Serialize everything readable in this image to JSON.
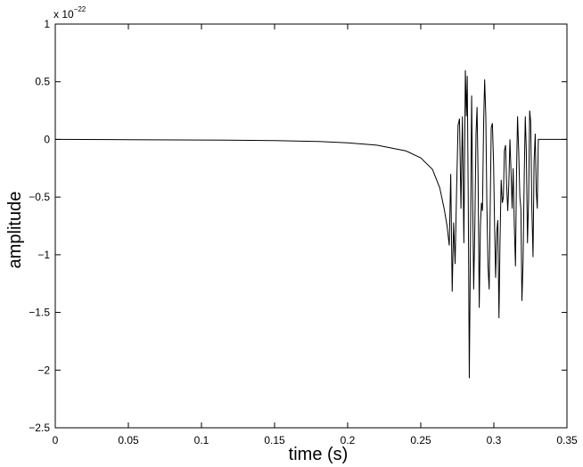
{
  "chart_data": {
    "type": "line",
    "title": "",
    "xlabel": "time (s)",
    "ylabel": "amplitude",
    "exponent_label": "x 10",
    "exponent_power": "−22",
    "xlim": [
      0,
      0.35
    ],
    "ylim": [
      -2.5,
      1
    ],
    "grid": false,
    "x_ticks": [
      0,
      0.05,
      0.1,
      0.15,
      0.2,
      0.25,
      0.3,
      0.35
    ],
    "x_tick_labels": [
      "0",
      "0.05",
      "0.1",
      "0.15",
      "0.2",
      "0.25",
      "0.3",
      "0.35"
    ],
    "y_ticks": [
      1,
      0.5,
      0,
      -0.5,
      -1,
      -1.5,
      -2,
      -2.5
    ],
    "y_tick_labels": [
      "1",
      "0.5",
      "0",
      "−0.5",
      "−1",
      "−1.5",
      "−2",
      "−2.5"
    ],
    "series": [
      {
        "color": "#000000",
        "points": [
          [
            0,
            0.0
          ],
          [
            0.05,
            -0.002
          ],
          [
            0.1,
            -0.005
          ],
          [
            0.15,
            -0.01
          ],
          [
            0.18,
            -0.018
          ],
          [
            0.2,
            -0.03
          ],
          [
            0.22,
            -0.05
          ],
          [
            0.24,
            -0.1
          ],
          [
            0.25,
            -0.16
          ],
          [
            0.258,
            -0.26
          ],
          [
            0.263,
            -0.42
          ],
          [
            0.266,
            -0.6
          ],
          [
            0.268,
            -0.75
          ],
          [
            0.2695,
            -0.92
          ],
          [
            0.2705,
            -0.3
          ],
          [
            0.2715,
            -1.32
          ],
          [
            0.2725,
            -0.72
          ],
          [
            0.2735,
            -1.08
          ],
          [
            0.2745,
            -0.45
          ],
          [
            0.2755,
            0.12
          ],
          [
            0.2765,
            0.18
          ],
          [
            0.2775,
            -0.6
          ],
          [
            0.2785,
            0.2
          ],
          [
            0.2795,
            -0.9
          ],
          [
            0.2805,
            0.6
          ],
          [
            0.2812,
            0.2
          ],
          [
            0.2818,
            0.55
          ],
          [
            0.2825,
            -0.55
          ],
          [
            0.2832,
            -2.07
          ],
          [
            0.284,
            -0.9
          ],
          [
            0.2848,
            0.38
          ],
          [
            0.2855,
            -0.5
          ],
          [
            0.2862,
            -1.3
          ],
          [
            0.287,
            -0.75
          ],
          [
            0.2878,
            0.05
          ],
          [
            0.2885,
            0.28
          ],
          [
            0.2892,
            -0.3
          ],
          [
            0.29,
            -1.46
          ],
          [
            0.2908,
            -0.75
          ],
          [
            0.2915,
            -0.55
          ],
          [
            0.2922,
            -0.62
          ],
          [
            0.293,
            0.14
          ],
          [
            0.2937,
            0.52
          ],
          [
            0.2945,
            0.2
          ],
          [
            0.2952,
            -0.55
          ],
          [
            0.296,
            -1.1
          ],
          [
            0.2968,
            -1.3
          ],
          [
            0.2975,
            -0.6
          ],
          [
            0.2982,
            0.1
          ],
          [
            0.299,
            0.14
          ],
          [
            0.2998,
            -0.2
          ],
          [
            0.3005,
            -0.75
          ],
          [
            0.3012,
            -1.2
          ],
          [
            0.302,
            -0.8
          ],
          [
            0.3027,
            -0.7
          ],
          [
            0.3035,
            -1.55
          ],
          [
            0.3042,
            -0.9
          ],
          [
            0.305,
            -0.35
          ],
          [
            0.3058,
            -0.55
          ],
          [
            0.3065,
            -0.5
          ],
          [
            0.3072,
            -0.1
          ],
          [
            0.308,
            -0.05
          ],
          [
            0.3087,
            -0.38
          ],
          [
            0.3095,
            -0.62
          ],
          [
            0.3102,
            -0.4
          ],
          [
            0.311,
            0.0
          ],
          [
            0.3118,
            -0.3
          ],
          [
            0.3125,
            -0.6
          ],
          [
            0.3132,
            -0.25
          ],
          [
            0.314,
            -0.75
          ],
          [
            0.3148,
            -1.1
          ],
          [
            0.3155,
            -0.3
          ],
          [
            0.3162,
            0.2
          ],
          [
            0.317,
            -0.1
          ],
          [
            0.3178,
            -0.5
          ],
          [
            0.3185,
            -0.6
          ],
          [
            0.3192,
            -1.4
          ],
          [
            0.32,
            -1.05
          ],
          [
            0.3208,
            -0.3
          ],
          [
            0.3215,
            0.2
          ],
          [
            0.3222,
            -0.1
          ],
          [
            0.323,
            -0.9
          ],
          [
            0.3238,
            -0.5
          ],
          [
            0.3245,
            0.25
          ],
          [
            0.3252,
            0.15
          ],
          [
            0.326,
            -0.6
          ],
          [
            0.3268,
            -1.02
          ],
          [
            0.3275,
            -0.2
          ],
          [
            0.3283,
            0.05
          ],
          [
            0.329,
            -0.45
          ],
          [
            0.3297,
            -0.6
          ],
          [
            0.3304,
            0.0
          ],
          [
            0.331,
            0.0
          ],
          [
            0.35,
            0.0
          ]
        ]
      }
    ]
  }
}
